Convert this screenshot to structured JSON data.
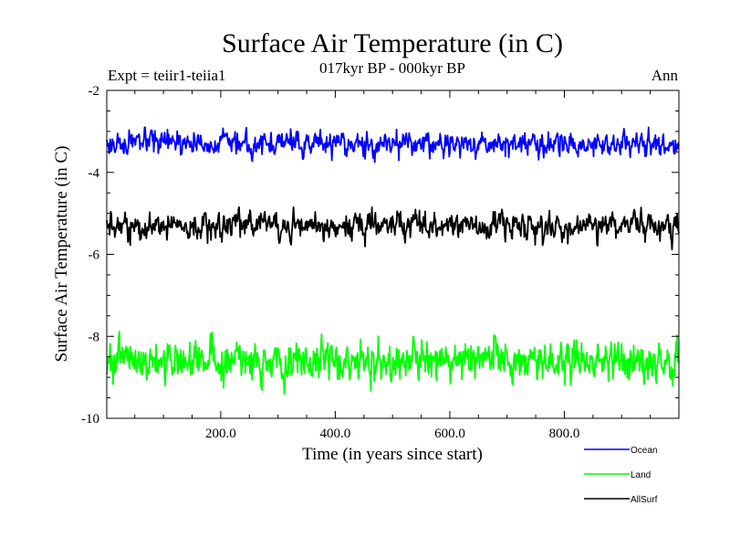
{
  "chart_data": {
    "type": "line",
    "title": "Surface Air Temperature (in C)",
    "subtitle": "017kyr BP - 000kyr BP",
    "experiment_label": "Expt = teiir1-teiia1",
    "period_label": "Ann",
    "xlabel": "Time (in years since start)",
    "ylabel": "Surface Air Temperature (in C)",
    "xlim": [
      1,
      1000
    ],
    "ylim": [
      -10,
      -2
    ],
    "x_ticks": [
      200,
      400,
      600,
      800
    ],
    "x_tick_labels": [
      "200.0",
      "400.0",
      "600.0",
      "800.0"
    ],
    "y_ticks": [
      -10,
      -8,
      -6,
      -4,
      -2
    ],
    "y_tick_labels": [
      "-10",
      "-8",
      "-6",
      "-4",
      "-2"
    ],
    "grid": false,
    "legend_position": "bottom-right, outside plot",
    "series": [
      {
        "name": "Ocean",
        "color": "#0000ff",
        "mean": -3.3,
        "spread": 0.13,
        "min": -3.75,
        "max": -2.9
      },
      {
        "name": "Land",
        "color": "#00ff00",
        "mean": -8.6,
        "spread": 0.22,
        "min": -9.55,
        "max": -7.75
      },
      {
        "name": "AllSurf",
        "color": "#000000",
        "mean": -5.3,
        "spread": 0.15,
        "min": -5.9,
        "max": -4.85
      }
    ]
  }
}
